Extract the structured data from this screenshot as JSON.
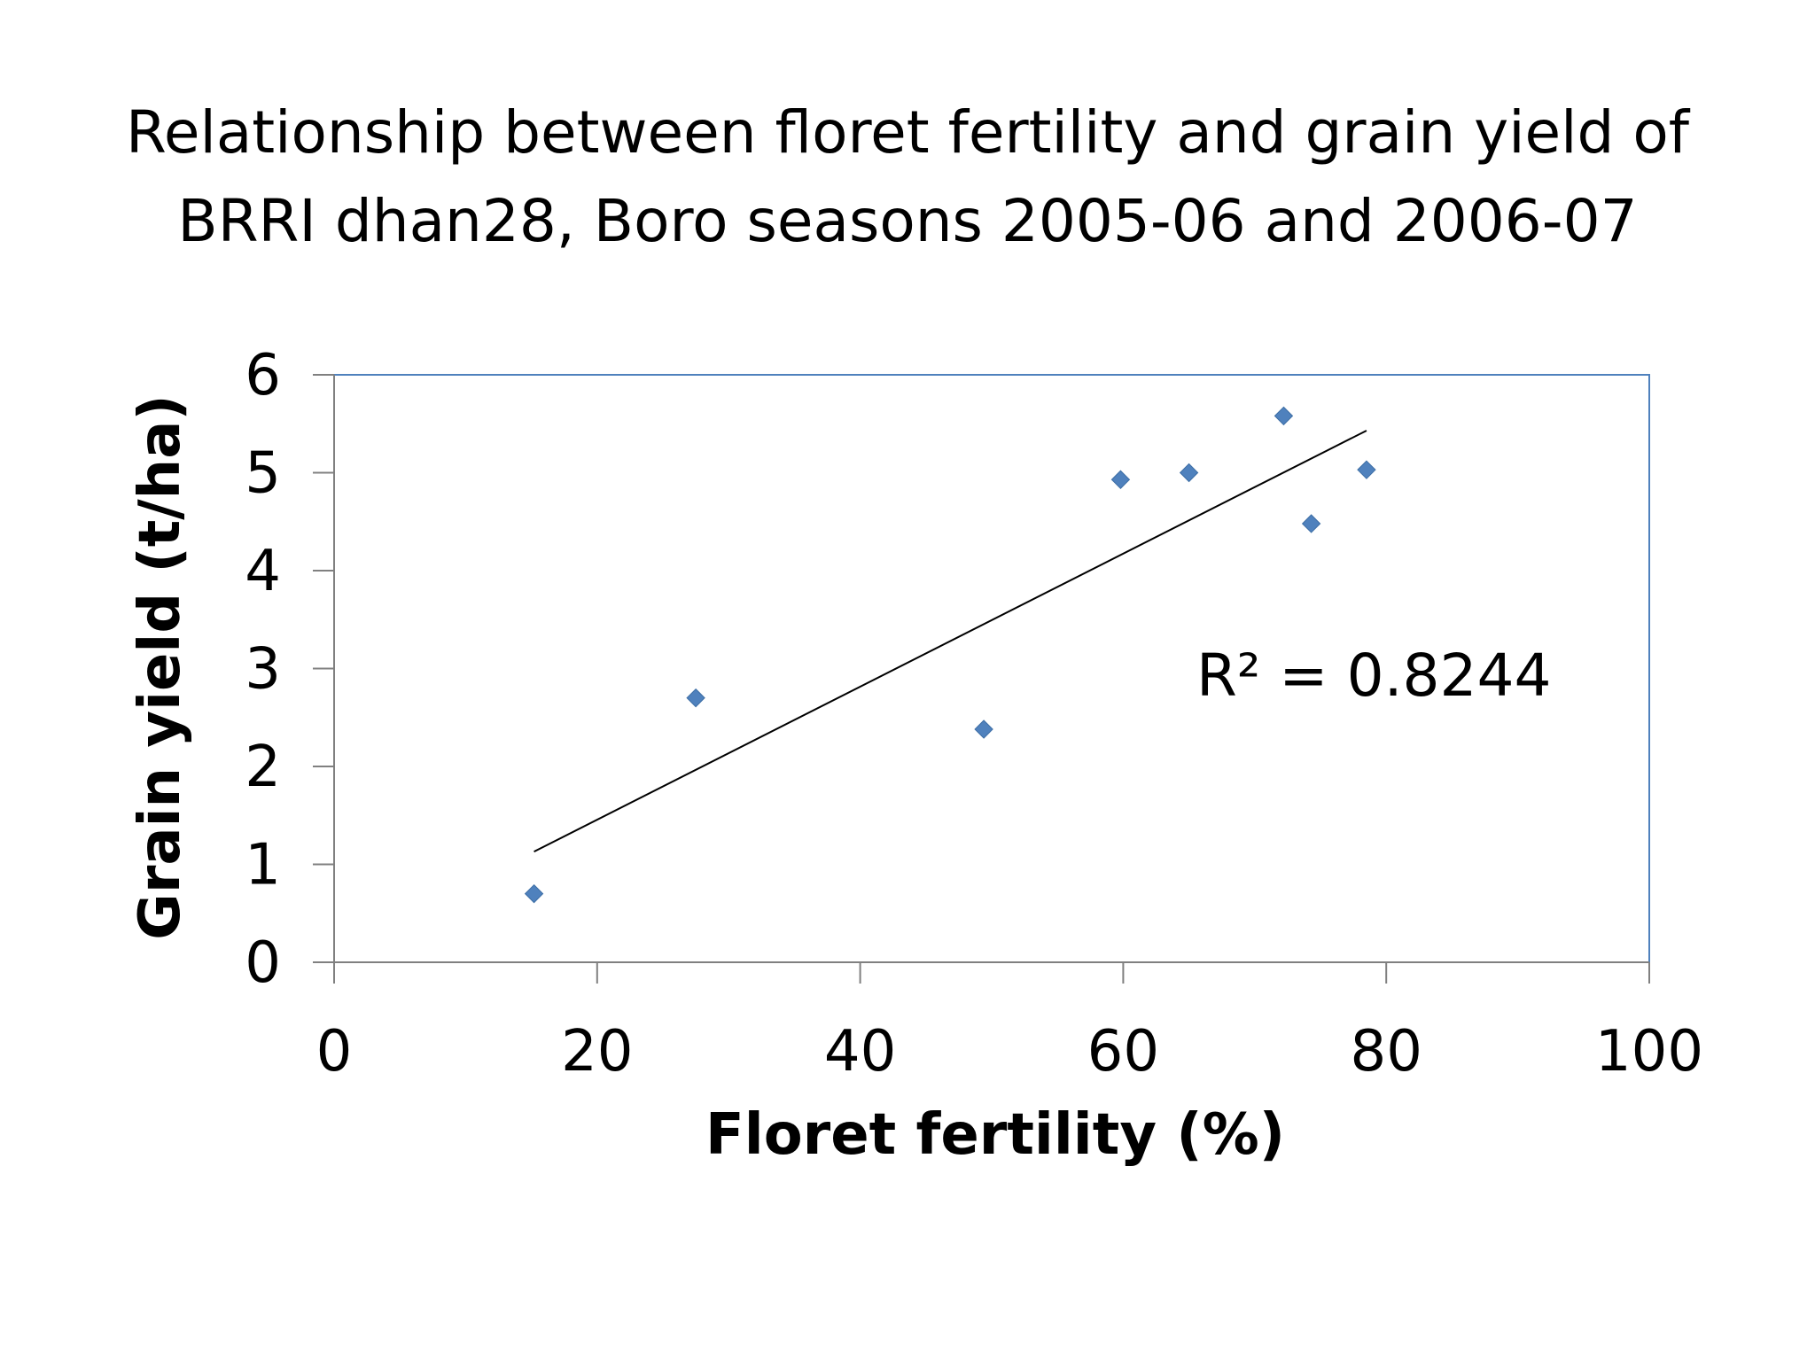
{
  "title_lines": [
    "Relationship between floret fertility and grain yield of",
    "BRRI dhan28, Boro seasons 2005-06 and 2006-07"
  ],
  "chart_data": {
    "type": "scatter",
    "title": "Relationship between floret fertility and grain yield of BRRI dhan28, Boro seasons 2005-06 and 2006-07",
    "xlabel": "Floret fertility (%)",
    "ylabel": "Grain yield (t/ha)",
    "xlim": [
      0,
      100
    ],
    "ylim": [
      0,
      6
    ],
    "x_ticks": [
      0,
      20,
      40,
      60,
      80,
      100
    ],
    "y_ticks": [
      0,
      1,
      2,
      3,
      4,
      5,
      6
    ],
    "points": [
      {
        "x": 15.2,
        "y": 0.7
      },
      {
        "x": 27.5,
        "y": 2.7
      },
      {
        "x": 49.4,
        "y": 2.38
      },
      {
        "x": 59.8,
        "y": 4.93
      },
      {
        "x": 65.0,
        "y": 5.0
      },
      {
        "x": 72.2,
        "y": 5.58
      },
      {
        "x": 74.3,
        "y": 4.48
      },
      {
        "x": 78.5,
        "y": 5.03
      }
    ],
    "trendline": {
      "type": "linear",
      "from": {
        "x": 15.2,
        "y": 1.13
      },
      "to": {
        "x": 78.5,
        "y": 5.43
      }
    },
    "annotation": "R² = 0.8244",
    "marker_color": "#4F81BD",
    "plot_border_color": "#4F81BD",
    "trendline_color": "#000000",
    "grid": false,
    "legend": false
  }
}
